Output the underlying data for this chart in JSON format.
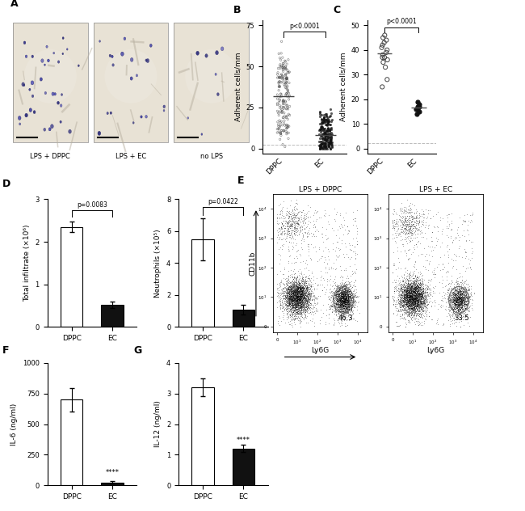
{
  "panel_B": {
    "ylabel": "Adherent cells/mm",
    "pval": "p<0.0001",
    "ylim": [
      -2,
      78
    ],
    "yticks": [
      0,
      25,
      50,
      75
    ],
    "dppc_mean": 35,
    "ec_mean": 8
  },
  "panel_C": {
    "ylabel": "Adherent cells/mm",
    "pval": "p<0.0001",
    "ylim": [
      -2,
      52
    ],
    "yticks": [
      0,
      10,
      20,
      30,
      40,
      50
    ],
    "dppc_mean": 37,
    "ec_mean": 17
  },
  "panel_D_left": {
    "ylabel": "Total infiltrate (×10⁶)",
    "pval": "p=0.0083",
    "ylim": [
      0,
      3
    ],
    "yticks": [
      0,
      1,
      2,
      3
    ],
    "dppc_mean": 2.35,
    "dppc_err": 0.12,
    "ec_mean": 0.52,
    "ec_err": 0.08
  },
  "panel_D_right": {
    "ylabel": "Neutrophils (×10⁵)",
    "pval": "p=0.0422",
    "ylim": [
      0,
      8
    ],
    "yticks": [
      0,
      2,
      4,
      6,
      8
    ],
    "dppc_mean": 5.5,
    "dppc_err": 1.3,
    "ec_mean": 1.1,
    "ec_err": 0.3
  },
  "panel_F": {
    "ylabel": "IL-6 (ng/ml)",
    "pval": "****",
    "ylim": [
      0,
      1000
    ],
    "yticks": [
      0,
      250,
      500,
      750,
      1000
    ],
    "dppc_mean": 700,
    "dppc_err": 95,
    "ec_mean": 25,
    "ec_err": 8
  },
  "panel_G": {
    "ylabel": "IL-12 (ng/ml)",
    "pval": "****",
    "ylim": [
      0,
      4
    ],
    "yticks": [
      0,
      1,
      2,
      3,
      4
    ],
    "dppc_mean": 3.2,
    "dppc_err": 0.28,
    "ec_mean": 1.2,
    "ec_err": 0.12
  },
  "colors": {
    "white_bar": "#ffffff",
    "black_bar": "#111111",
    "bar_edge": "#000000",
    "tissue_bg": "#dfd8c8",
    "tissue_light": "#e8e2d5"
  }
}
